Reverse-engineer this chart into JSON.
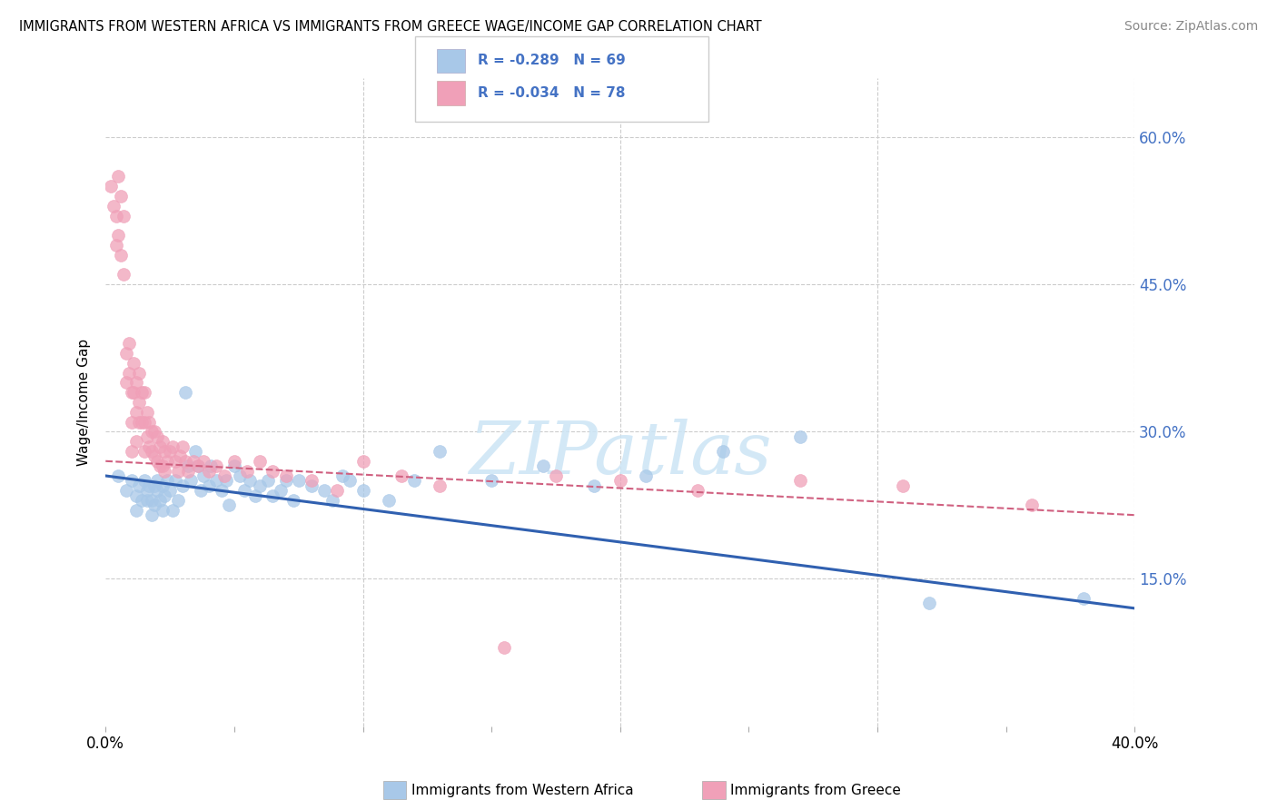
{
  "title": "IMMIGRANTS FROM WESTERN AFRICA VS IMMIGRANTS FROM GREECE WAGE/INCOME GAP CORRELATION CHART",
  "source": "Source: ZipAtlas.com",
  "ylabel_label": "Wage/Income Gap",
  "ytick_labels": [
    "60.0%",
    "45.0%",
    "30.0%",
    "15.0%"
  ],
  "ytick_values": [
    0.6,
    0.45,
    0.3,
    0.15
  ],
  "xlim": [
    0.0,
    0.4
  ],
  "ylim": [
    0.0,
    0.66
  ],
  "legend_blue_r": "-0.289",
  "legend_blue_n": "69",
  "legend_pink_r": "-0.034",
  "legend_pink_n": "78",
  "legend_blue_label": "Immigrants from Western Africa",
  "legend_pink_label": "Immigrants from Greece",
  "blue_color": "#A8C8E8",
  "pink_color": "#F0A0B8",
  "blue_line_color": "#3060B0",
  "pink_line_color": "#D06080",
  "watermark": "ZIPatlas",
  "blue_x": [
    0.005,
    0.008,
    0.01,
    0.012,
    0.012,
    0.013,
    0.014,
    0.015,
    0.016,
    0.016,
    0.017,
    0.018,
    0.018,
    0.019,
    0.019,
    0.02,
    0.02,
    0.021,
    0.022,
    0.022,
    0.023,
    0.024,
    0.025,
    0.026,
    0.027,
    0.028,
    0.03,
    0.031,
    0.032,
    0.033,
    0.035,
    0.036,
    0.037,
    0.038,
    0.04,
    0.041,
    0.043,
    0.045,
    0.047,
    0.048,
    0.05,
    0.052,
    0.054,
    0.056,
    0.058,
    0.06,
    0.063,
    0.065,
    0.068,
    0.07,
    0.073,
    0.075,
    0.08,
    0.085,
    0.088,
    0.092,
    0.095,
    0.1,
    0.11,
    0.12,
    0.13,
    0.15,
    0.17,
    0.19,
    0.21,
    0.24,
    0.27,
    0.32,
    0.38
  ],
  "blue_y": [
    0.255,
    0.24,
    0.25,
    0.235,
    0.22,
    0.245,
    0.23,
    0.25,
    0.24,
    0.23,
    0.245,
    0.23,
    0.215,
    0.245,
    0.225,
    0.25,
    0.24,
    0.23,
    0.245,
    0.22,
    0.235,
    0.25,
    0.24,
    0.22,
    0.25,
    0.23,
    0.245,
    0.34,
    0.265,
    0.25,
    0.28,
    0.265,
    0.24,
    0.255,
    0.245,
    0.265,
    0.25,
    0.24,
    0.25,
    0.225,
    0.265,
    0.255,
    0.24,
    0.25,
    0.235,
    0.245,
    0.25,
    0.235,
    0.24,
    0.25,
    0.23,
    0.25,
    0.245,
    0.24,
    0.23,
    0.255,
    0.25,
    0.24,
    0.23,
    0.25,
    0.28,
    0.25,
    0.265,
    0.245,
    0.255,
    0.28,
    0.295,
    0.125,
    0.13
  ],
  "pink_x": [
    0.002,
    0.003,
    0.004,
    0.004,
    0.005,
    0.005,
    0.006,
    0.006,
    0.007,
    0.007,
    0.008,
    0.008,
    0.009,
    0.009,
    0.01,
    0.01,
    0.01,
    0.011,
    0.011,
    0.012,
    0.012,
    0.012,
    0.013,
    0.013,
    0.013,
    0.014,
    0.014,
    0.015,
    0.015,
    0.015,
    0.016,
    0.016,
    0.017,
    0.017,
    0.018,
    0.018,
    0.019,
    0.019,
    0.02,
    0.02,
    0.021,
    0.021,
    0.022,
    0.022,
    0.023,
    0.023,
    0.024,
    0.025,
    0.026,
    0.027,
    0.028,
    0.029,
    0.03,
    0.031,
    0.032,
    0.034,
    0.036,
    0.038,
    0.04,
    0.043,
    0.046,
    0.05,
    0.055,
    0.06,
    0.065,
    0.07,
    0.08,
    0.09,
    0.1,
    0.115,
    0.13,
    0.155,
    0.175,
    0.2,
    0.23,
    0.27,
    0.31,
    0.36
  ],
  "pink_y": [
    0.55,
    0.53,
    0.52,
    0.49,
    0.56,
    0.5,
    0.54,
    0.48,
    0.52,
    0.46,
    0.38,
    0.35,
    0.39,
    0.36,
    0.34,
    0.31,
    0.28,
    0.37,
    0.34,
    0.35,
    0.32,
    0.29,
    0.36,
    0.33,
    0.31,
    0.34,
    0.31,
    0.34,
    0.31,
    0.28,
    0.32,
    0.295,
    0.31,
    0.285,
    0.3,
    0.28,
    0.3,
    0.275,
    0.295,
    0.27,
    0.285,
    0.265,
    0.29,
    0.265,
    0.28,
    0.26,
    0.27,
    0.28,
    0.285,
    0.27,
    0.26,
    0.275,
    0.285,
    0.27,
    0.26,
    0.27,
    0.265,
    0.27,
    0.26,
    0.265,
    0.255,
    0.27,
    0.26,
    0.27,
    0.26,
    0.255,
    0.25,
    0.24,
    0.27,
    0.255,
    0.245,
    0.08,
    0.255,
    0.25,
    0.24,
    0.25,
    0.245,
    0.225
  ]
}
